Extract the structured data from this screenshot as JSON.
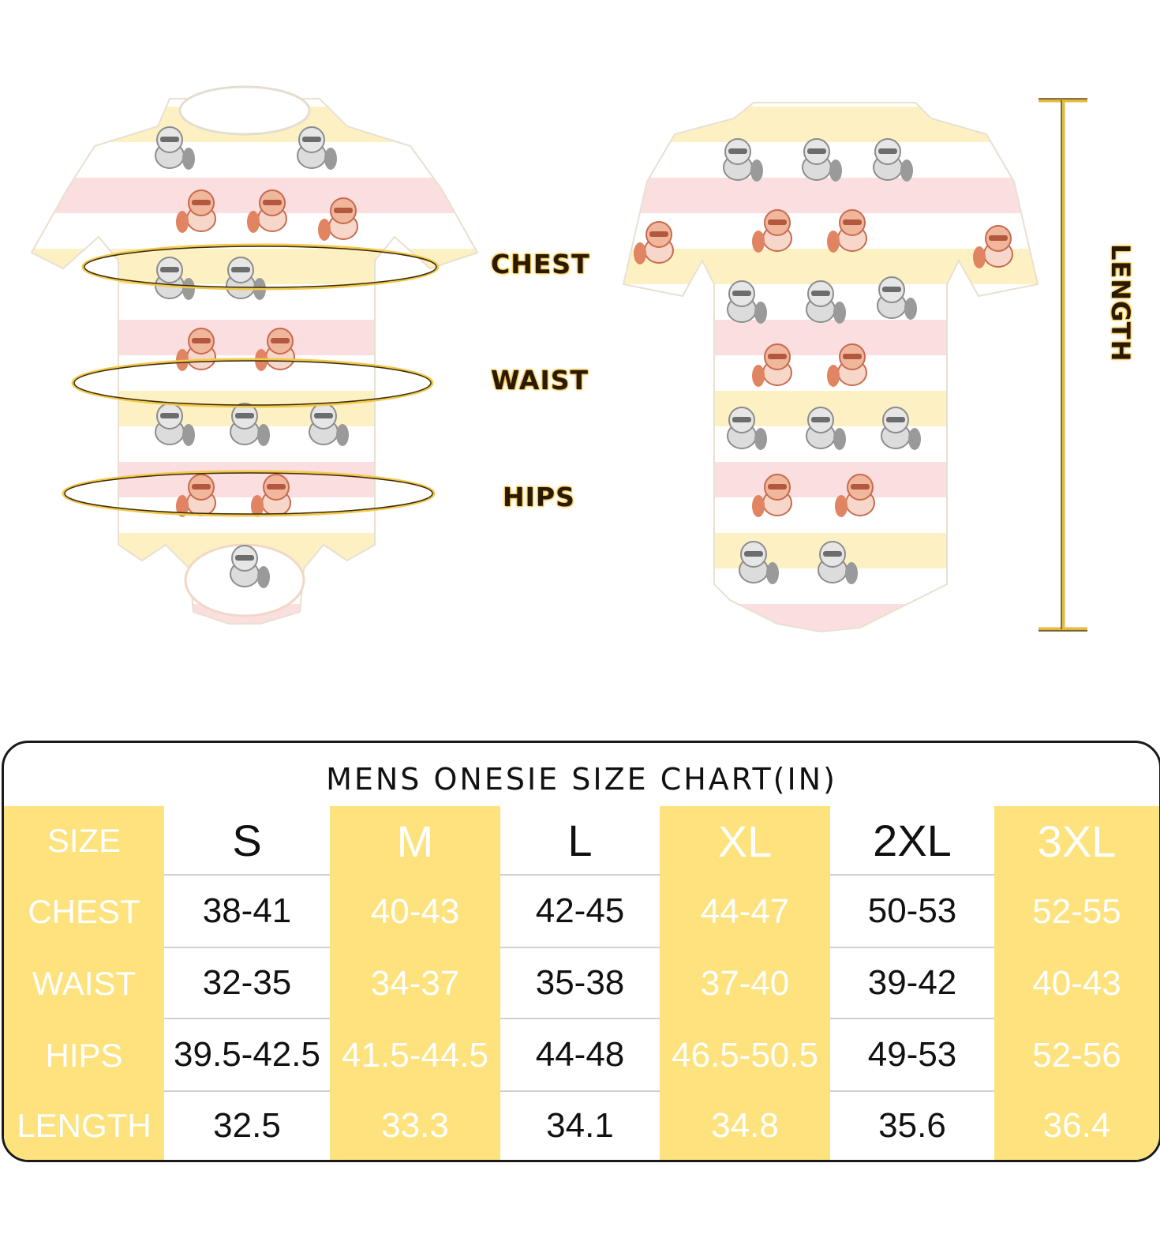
{
  "illustration": {
    "labels": {
      "chest": "CHEST",
      "waist": "WAIST",
      "hips": "HIPS",
      "length": "LENGTH"
    },
    "colors": {
      "accent": "#f2c84b",
      "stripe_pink": "#fbdfe0",
      "stripe_yellow": "#fdf1c4",
      "stripe_white": "#ffffff"
    }
  },
  "size_chart": {
    "title": "MENS ONESIE SIZE CHART(IN)",
    "row_labels": {
      "size": "SIZE",
      "chest": "CHEST",
      "waist": "WAIST",
      "hips": "HIPS",
      "length": "LENGTH"
    },
    "sizes": [
      {
        "size": "S",
        "chest": "38-41",
        "waist": "32-35",
        "hips": "39.5-42.5",
        "length": "32.5"
      },
      {
        "size": "M",
        "chest": "40-43",
        "waist": "34-37",
        "hips": "41.5-44.5",
        "length": "33.3"
      },
      {
        "size": "L",
        "chest": "42-45",
        "waist": "35-38",
        "hips": "44-48",
        "length": "34.1"
      },
      {
        "size": "XL",
        "chest": "44-47",
        "waist": "37-40",
        "hips": "46.5-50.5",
        "length": "34.8"
      },
      {
        "size": "2XL",
        "chest": "50-53",
        "waist": "39-42",
        "hips": "49-53",
        "length": "35.6"
      },
      {
        "size": "3XL",
        "chest": "52-55",
        "waist": "40-43",
        "hips": "52-56",
        "length": "36.4"
      }
    ],
    "colors": {
      "yellow": "#fde27e",
      "border": "#1a1a1a"
    }
  }
}
